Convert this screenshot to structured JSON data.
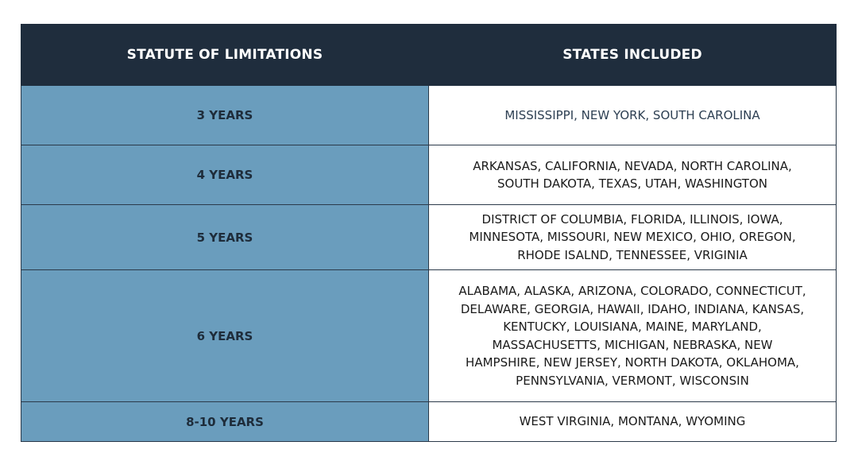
{
  "header": {
    "col1": "STATUTE OF LIMITATIONS",
    "col2": "STATES INCLUDED"
  },
  "rows": [
    {
      "years": "3 YEARS",
      "states": [
        "MISSISSIPPI, NEW YORK, SOUTH CAROLINA"
      ]
    },
    {
      "years": "4 YEARS",
      "states": [
        "ARKANSAS, CALIFORNIA, NEVADA, NORTH CAROLINA,",
        "SOUTH DAKOTA, TEXAS, UTAH, WASHINGTON"
      ]
    },
    {
      "years": "5 YEARS",
      "states": [
        "DISTRICT OF COLUMBIA, FLORIDA, ILLINOIS, IOWA,",
        "MINNESOTA, MISSOURI, NEW MEXICO, OHIO, OREGON,",
        "RHODE ISALND, TENNESSEE, VRIGINIA"
      ]
    },
    {
      "years": "6 YEARS",
      "states": [
        "ALABAMA, ALASKA, ARIZONA, COLORADO, CONNECTICUT,",
        "DELAWARE, GEORGIA, HAWAII, IDAHO, INDIANA, KANSAS,",
        "KENTUCKY, LOUISIANA, MAINE, MARYLAND,",
        "MASSACHUSETTS, MICHIGAN, NEBRASKA, NEW",
        "HAMPSHIRE, NEW JERSEY, NORTH DAKOTA, OKLAHOMA,",
        "PENNSYLVANIA, VERMONT, WISCONSIN"
      ]
    },
    {
      "years": "8-10 YEARS",
      "states": [
        "WEST VIRGINIA, MONTANA, WYOMING"
      ]
    }
  ],
  "colors": {
    "header_bg": "#1f2d3d",
    "years_bg": "#6a9dbd",
    "states_bg": "#ffffff",
    "border": "#2b3a4a"
  }
}
